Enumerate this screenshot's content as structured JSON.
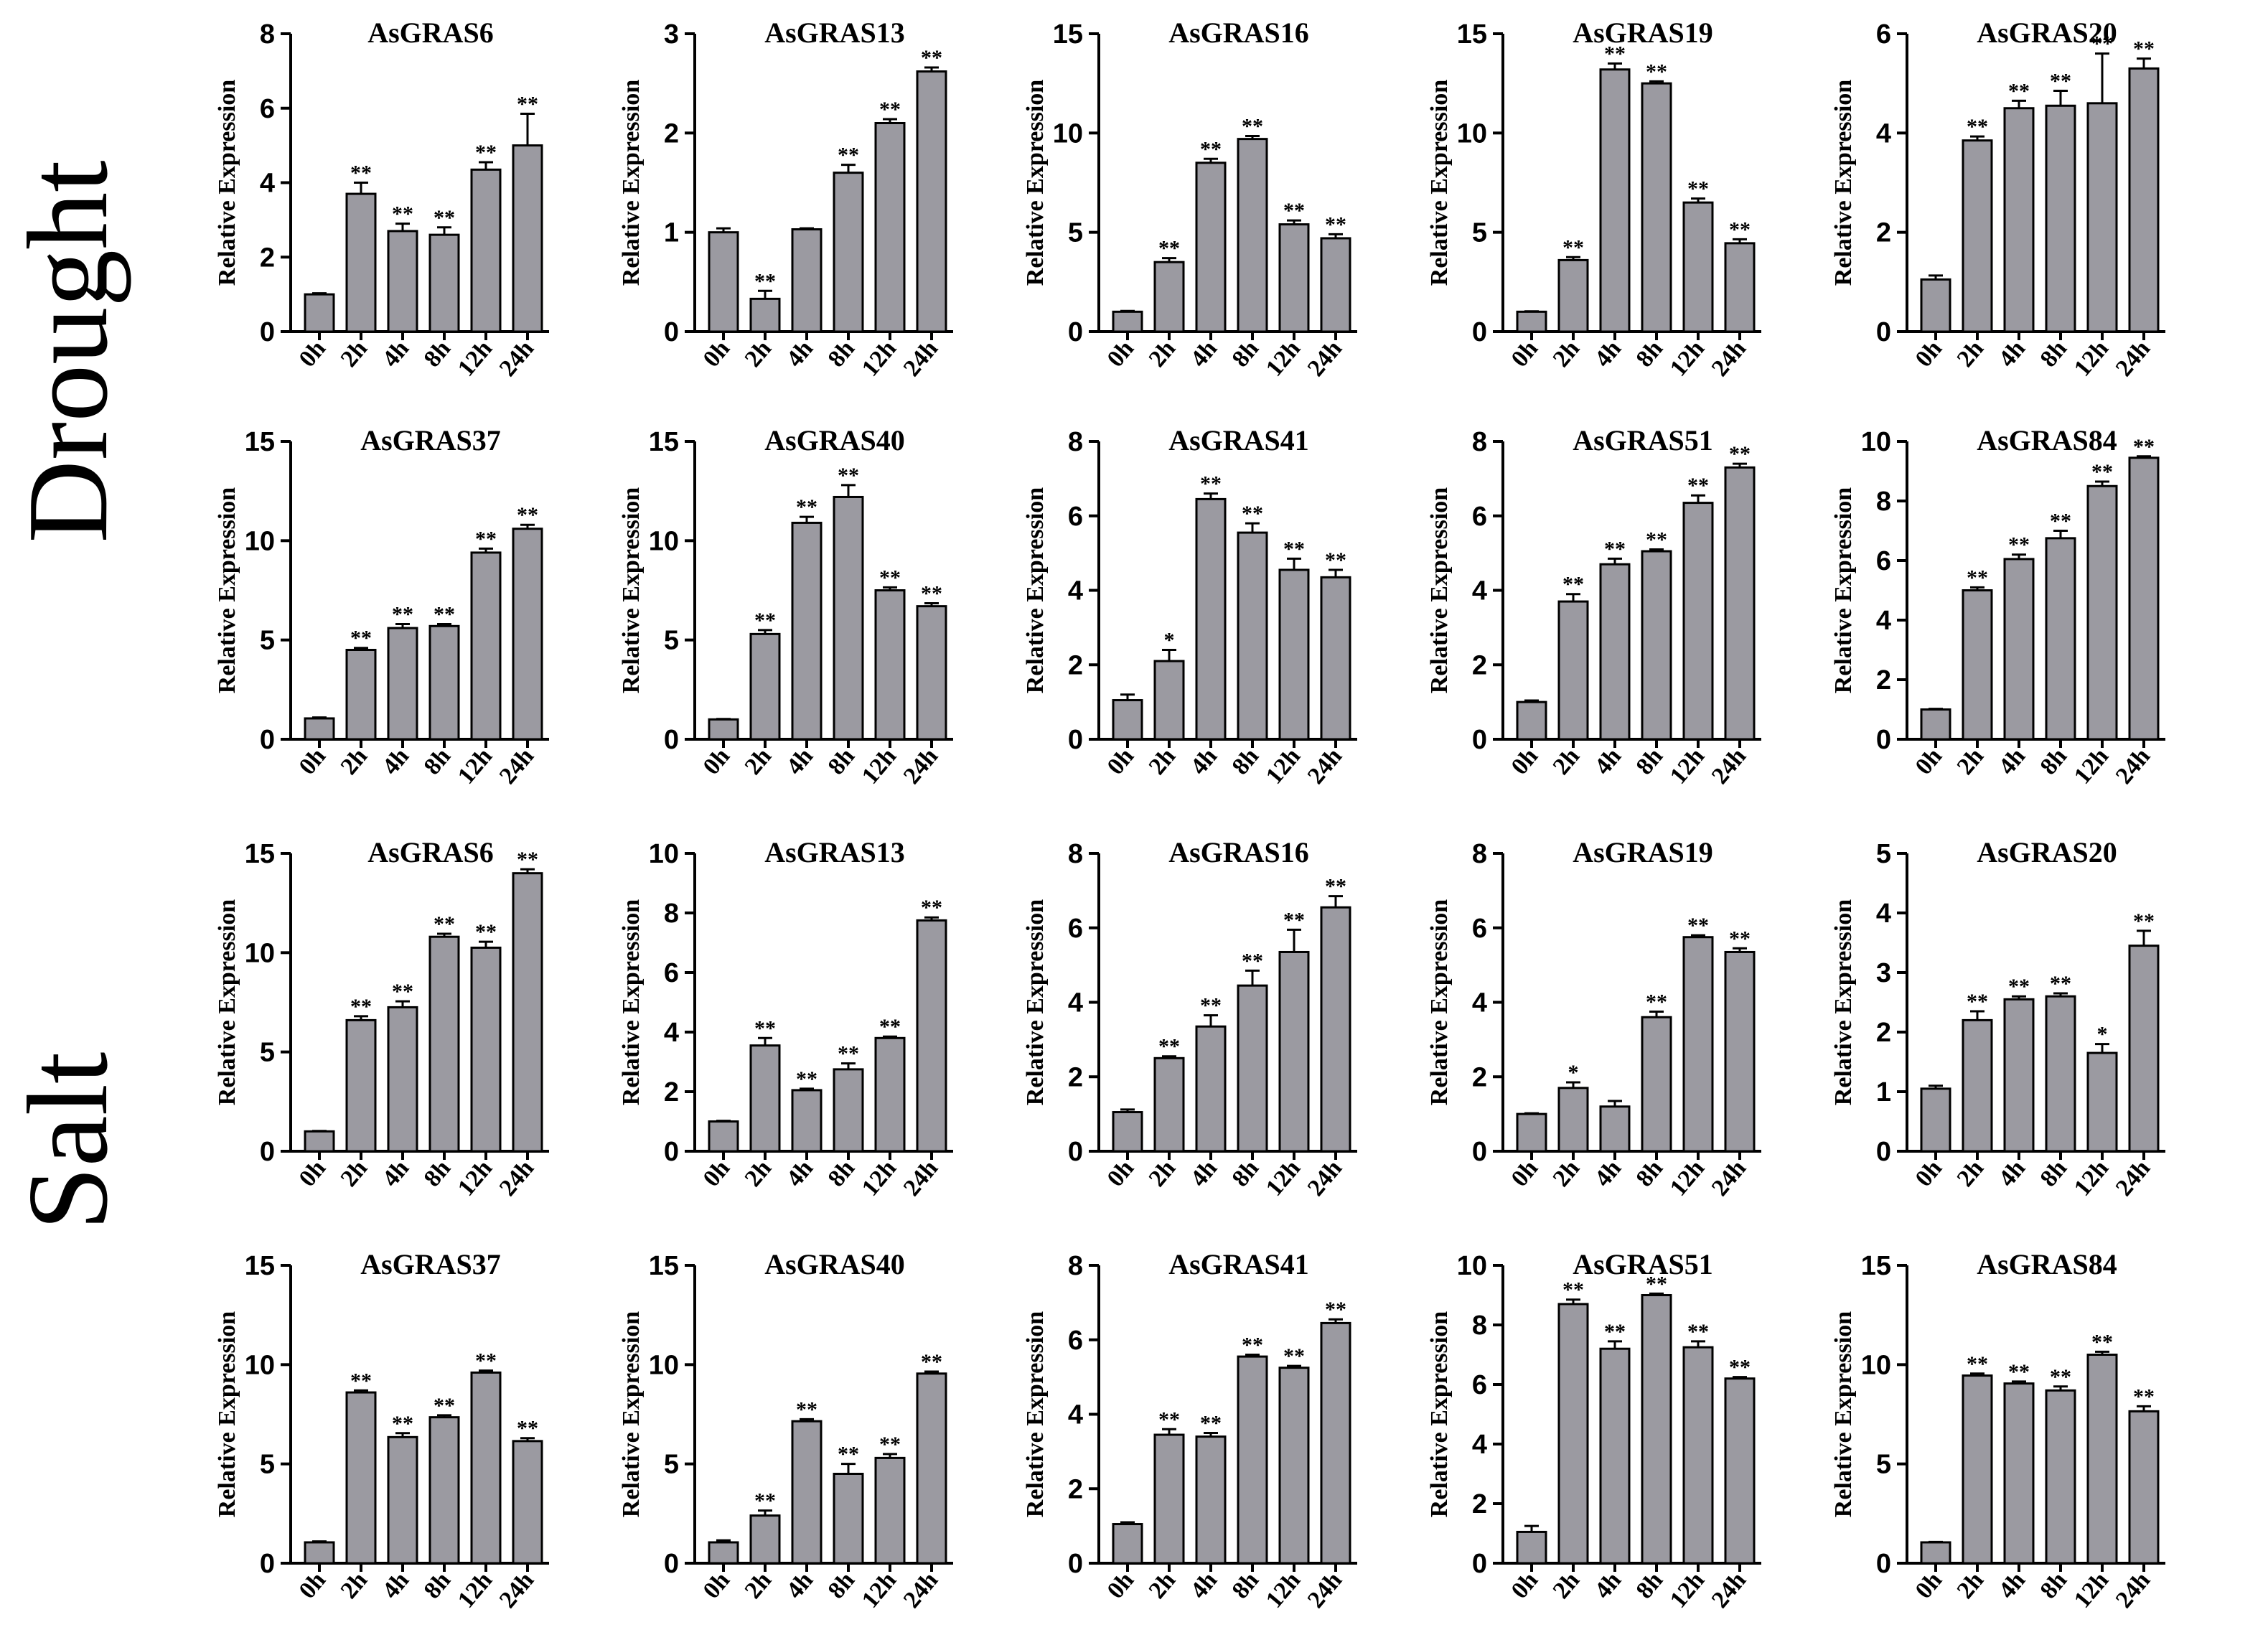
{
  "figure": {
    "row_labels": [
      "Drought",
      "Salt"
    ],
    "ylabel": "Relative Expression",
    "categories": [
      "0h",
      "2h",
      "4h",
      "8h",
      "12h",
      "24h"
    ]
  },
  "colors": {
    "bar": "#9b9aa1",
    "axis": "#000000"
  },
  "chart_data": [
    {
      "type": "bar",
      "condition": "Drought",
      "title": "AsGRAS6",
      "ylabel": "Relative Expression",
      "categories": [
        "0h",
        "2h",
        "4h",
        "8h",
        "12h",
        "24h"
      ],
      "ylim": [
        0,
        8
      ],
      "yticks": [
        "0",
        "2",
        "4",
        "6",
        "8"
      ],
      "values": [
        1.0,
        3.7,
        2.7,
        2.6,
        4.35,
        5.0
      ],
      "errors": [
        0.03,
        0.3,
        0.2,
        0.2,
        0.2,
        0.85
      ],
      "significance": [
        "",
        "**",
        "**",
        "**",
        "**",
        "**"
      ]
    },
    {
      "type": "bar",
      "condition": "Drought",
      "title": "AsGRAS13",
      "ylabel": "Relative Expression",
      "categories": [
        "0h",
        "2h",
        "4h",
        "8h",
        "12h",
        "24h"
      ],
      "ylim": [
        0,
        3
      ],
      "yticks": [
        "0",
        "1",
        "2",
        "3"
      ],
      "values": [
        1.0,
        0.33,
        1.03,
        1.6,
        2.1,
        2.62
      ],
      "errors": [
        0.04,
        0.08,
        0.01,
        0.08,
        0.04,
        0.04
      ],
      "significance": [
        "",
        "**",
        "",
        "**",
        "**",
        "**"
      ]
    },
    {
      "type": "bar",
      "condition": "Drought",
      "title": "AsGRAS16",
      "ylabel": "Relative Expression",
      "categories": [
        "0h",
        "2h",
        "4h",
        "8h",
        "12h",
        "24h"
      ],
      "ylim": [
        0,
        15
      ],
      "yticks": [
        "0",
        "5",
        "10",
        "15"
      ],
      "values": [
        1.0,
        3.5,
        8.5,
        9.7,
        5.4,
        4.7
      ],
      "errors": [
        0.04,
        0.2,
        0.2,
        0.15,
        0.2,
        0.2
      ],
      "significance": [
        "",
        "**",
        "**",
        "**",
        "**",
        "**"
      ]
    },
    {
      "type": "bar",
      "condition": "Drought",
      "title": "AsGRAS19",
      "ylabel": "Relative Expression",
      "categories": [
        "0h",
        "2h",
        "4h",
        "8h",
        "12h",
        "24h"
      ],
      "ylim": [
        0,
        15
      ],
      "yticks": [
        "0",
        "5",
        "10",
        "15"
      ],
      "values": [
        1.0,
        3.6,
        13.2,
        12.5,
        6.5,
        4.45
      ],
      "errors": [
        0.02,
        0.15,
        0.3,
        0.1,
        0.2,
        0.2
      ],
      "significance": [
        "",
        "**",
        "**",
        "**",
        "**",
        "**"
      ]
    },
    {
      "type": "bar",
      "condition": "Drought",
      "title": "AsGRAS20",
      "ylabel": "Relative Expression",
      "categories": [
        "0h",
        "2h",
        "4h",
        "8h",
        "12h",
        "24h"
      ],
      "ylim": [
        0,
        6
      ],
      "yticks": [
        "0",
        "2",
        "4",
        "6"
      ],
      "values": [
        1.05,
        3.85,
        4.5,
        4.55,
        4.6,
        5.3
      ],
      "errors": [
        0.08,
        0.08,
        0.15,
        0.3,
        1.0,
        0.2
      ],
      "significance": [
        "",
        "**",
        "**",
        "**",
        "**",
        "**"
      ]
    },
    {
      "type": "bar",
      "condition": "Drought",
      "title": "AsGRAS37",
      "ylabel": "Relative Expression",
      "categories": [
        "0h",
        "2h",
        "4h",
        "8h",
        "12h",
        "24h"
      ],
      "ylim": [
        0,
        15
      ],
      "yticks": [
        "0",
        "5",
        "10",
        "15"
      ],
      "values": [
        1.05,
        4.5,
        5.6,
        5.7,
        9.4,
        10.6
      ],
      "errors": [
        0.05,
        0.1,
        0.2,
        0.1,
        0.2,
        0.2
      ],
      "significance": [
        "",
        "**",
        "**",
        "**",
        "**",
        "**"
      ]
    },
    {
      "type": "bar",
      "condition": "Drought",
      "title": "AsGRAS40",
      "ylabel": "Relative Expression",
      "categories": [
        "0h",
        "2h",
        "4h",
        "8h",
        "12h",
        "24h"
      ],
      "ylim": [
        0,
        15
      ],
      "yticks": [
        "0",
        "5",
        "10",
        "15"
      ],
      "values": [
        1.0,
        5.3,
        10.9,
        12.2,
        7.5,
        6.7
      ],
      "errors": [
        0.02,
        0.2,
        0.3,
        0.6,
        0.15,
        0.15
      ],
      "significance": [
        "",
        "**",
        "**",
        "**",
        "**",
        "**"
      ]
    },
    {
      "type": "bar",
      "condition": "Drought",
      "title": "AsGRAS41",
      "ylabel": "Relative Expression",
      "categories": [
        "0h",
        "2h",
        "4h",
        "8h",
        "12h",
        "24h"
      ],
      "ylim": [
        0,
        8
      ],
      "yticks": [
        "0",
        "2",
        "4",
        "6",
        "8"
      ],
      "values": [
        1.05,
        2.1,
        6.45,
        5.55,
        4.55,
        4.35
      ],
      "errors": [
        0.15,
        0.3,
        0.15,
        0.25,
        0.3,
        0.2
      ],
      "significance": [
        "",
        "*",
        "**",
        "**",
        "**",
        "**"
      ]
    },
    {
      "type": "bar",
      "condition": "Drought",
      "title": "AsGRAS51",
      "ylabel": "Relative Expression",
      "categories": [
        "0h",
        "2h",
        "4h",
        "8h",
        "12h",
        "24h"
      ],
      "ylim": [
        0,
        8
      ],
      "yticks": [
        "0",
        "2",
        "4",
        "6",
        "8"
      ],
      "values": [
        1.0,
        3.7,
        4.7,
        5.05,
        6.35,
        7.3
      ],
      "errors": [
        0.04,
        0.2,
        0.15,
        0.05,
        0.2,
        0.1
      ],
      "significance": [
        "",
        "**",
        "**",
        "**",
        "**",
        "**"
      ]
    },
    {
      "type": "bar",
      "condition": "Drought",
      "title": "AsGRAS84",
      "ylabel": "Relative Expression",
      "categories": [
        "0h",
        "2h",
        "4h",
        "8h",
        "12h",
        "24h"
      ],
      "ylim": [
        0,
        10
      ],
      "yticks": [
        "0",
        "2",
        "4",
        "6",
        "8",
        "10"
      ],
      "values": [
        1.0,
        5.0,
        6.05,
        6.75,
        8.5,
        9.45
      ],
      "errors": [
        0.02,
        0.1,
        0.15,
        0.25,
        0.15,
        0.05
      ],
      "significance": [
        "",
        "**",
        "**",
        "**",
        "**",
        "**"
      ]
    },
    {
      "type": "bar",
      "condition": "Salt",
      "title": "AsGRAS6",
      "ylabel": "Relative Expression",
      "categories": [
        "0h",
        "2h",
        "4h",
        "8h",
        "12h",
        "24h"
      ],
      "ylim": [
        0,
        15
      ],
      "yticks": [
        "0",
        "5",
        "10",
        "15"
      ],
      "values": [
        1.0,
        6.6,
        7.25,
        10.8,
        10.25,
        14.0
      ],
      "errors": [
        0.02,
        0.2,
        0.3,
        0.15,
        0.3,
        0.2
      ],
      "significance": [
        "",
        "**",
        "**",
        "**",
        "**",
        "**"
      ]
    },
    {
      "type": "bar",
      "condition": "Salt",
      "title": "AsGRAS13",
      "ylabel": "Relative Expression",
      "categories": [
        "0h",
        "2h",
        "4h",
        "8h",
        "12h",
        "24h"
      ],
      "ylim": [
        0,
        10
      ],
      "yticks": [
        "0",
        "2",
        "4",
        "6",
        "8",
        "10"
      ],
      "values": [
        1.0,
        3.55,
        2.05,
        2.75,
        3.8,
        7.75
      ],
      "errors": [
        0.02,
        0.25,
        0.05,
        0.2,
        0.05,
        0.1
      ],
      "significance": [
        "",
        "**",
        "**",
        "**",
        "**",
        "**"
      ]
    },
    {
      "type": "bar",
      "condition": "Salt",
      "title": "AsGRAS16",
      "ylabel": "Relative Expression",
      "categories": [
        "0h",
        "2h",
        "4h",
        "8h",
        "12h",
        "24h"
      ],
      "ylim": [
        0,
        8
      ],
      "yticks": [
        "0",
        "2",
        "4",
        "6",
        "8"
      ],
      "values": [
        1.05,
        2.5,
        3.35,
        4.45,
        5.35,
        6.55
      ],
      "errors": [
        0.07,
        0.05,
        0.3,
        0.4,
        0.6,
        0.3
      ],
      "significance": [
        "",
        "**",
        "**",
        "**",
        "**",
        "**"
      ]
    },
    {
      "type": "bar",
      "condition": "Salt",
      "title": "AsGRAS19",
      "ylabel": "Relative Expression",
      "categories": [
        "0h",
        "2h",
        "4h",
        "8h",
        "12h",
        "24h"
      ],
      "ylim": [
        0,
        8
      ],
      "yticks": [
        "0",
        "2",
        "4",
        "6",
        "8"
      ],
      "values": [
        1.0,
        1.7,
        1.2,
        3.6,
        5.75,
        5.35
      ],
      "errors": [
        0.02,
        0.15,
        0.15,
        0.15,
        0.05,
        0.1
      ],
      "significance": [
        "",
        "*",
        "",
        "**",
        "**",
        "**"
      ]
    },
    {
      "type": "bar",
      "condition": "Salt",
      "title": "AsGRAS20",
      "ylabel": "Relative Expression",
      "categories": [
        "0h",
        "2h",
        "4h",
        "8h",
        "12h",
        "24h"
      ],
      "ylim": [
        0,
        5
      ],
      "yticks": [
        "0",
        "1",
        "2",
        "3",
        "4",
        "5"
      ],
      "values": [
        1.05,
        2.2,
        2.55,
        2.6,
        1.65,
        3.45
      ],
      "errors": [
        0.05,
        0.15,
        0.05,
        0.05,
        0.15,
        0.25
      ],
      "significance": [
        "",
        "**",
        "**",
        "**",
        "*",
        "**"
      ]
    },
    {
      "type": "bar",
      "condition": "Salt",
      "title": "AsGRAS37",
      "ylabel": "Relative Expression",
      "categories": [
        "0h",
        "2h",
        "4h",
        "8h",
        "12h",
        "24h"
      ],
      "ylim": [
        0,
        15
      ],
      "yticks": [
        "0",
        "5",
        "10",
        "15"
      ],
      "values": [
        1.05,
        8.6,
        6.35,
        7.35,
        9.6,
        6.15
      ],
      "errors": [
        0.05,
        0.1,
        0.2,
        0.1,
        0.1,
        0.15
      ],
      "significance": [
        "",
        "**",
        "**",
        "**",
        "**",
        "**"
      ]
    },
    {
      "type": "bar",
      "condition": "Salt",
      "title": "AsGRAS40",
      "ylabel": "Relative Expression",
      "categories": [
        "0h",
        "2h",
        "4h",
        "8h",
        "12h",
        "24h"
      ],
      "ylim": [
        0,
        15
      ],
      "yticks": [
        "0",
        "5",
        "10",
        "15"
      ],
      "values": [
        1.05,
        2.4,
        7.15,
        4.5,
        5.3,
        9.55
      ],
      "errors": [
        0.1,
        0.25,
        0.1,
        0.5,
        0.2,
        0.1
      ],
      "significance": [
        "",
        "**",
        "**",
        "**",
        "**",
        "**"
      ]
    },
    {
      "type": "bar",
      "condition": "Salt",
      "title": "AsGRAS41",
      "ylabel": "Relative Expression",
      "categories": [
        "0h",
        "2h",
        "4h",
        "8h",
        "12h",
        "24h"
      ],
      "ylim": [
        0,
        8
      ],
      "yticks": [
        "0",
        "2",
        "4",
        "6",
        "8"
      ],
      "values": [
        1.05,
        3.45,
        3.4,
        5.55,
        5.25,
        6.45
      ],
      "errors": [
        0.05,
        0.15,
        0.1,
        0.05,
        0.05,
        0.1
      ],
      "significance": [
        "",
        "**",
        "**",
        "**",
        "**",
        "**"
      ]
    },
    {
      "type": "bar",
      "condition": "Salt",
      "title": "AsGRAS51",
      "ylabel": "Relative Expression",
      "categories": [
        "0h",
        "2h",
        "4h",
        "8h",
        "12h",
        "24h"
      ],
      "ylim": [
        0,
        10
      ],
      "yticks": [
        "0",
        "2",
        "4",
        "6",
        "8",
        "10"
      ],
      "values": [
        1.05,
        8.7,
        7.2,
        9.0,
        7.25,
        6.2
      ],
      "errors": [
        0.2,
        0.15,
        0.25,
        0.05,
        0.2,
        0.05
      ],
      "significance": [
        "",
        "**",
        "**",
        "**",
        "**",
        "**"
      ]
    },
    {
      "type": "bar",
      "condition": "Salt",
      "title": "AsGRAS84",
      "ylabel": "Relative Expression",
      "categories": [
        "0h",
        "2h",
        "4h",
        "8h",
        "12h",
        "24h"
      ],
      "ylim": [
        0,
        15
      ],
      "yticks": [
        "0",
        "5",
        "10",
        "15"
      ],
      "values": [
        1.05,
        9.45,
        9.05,
        8.7,
        10.5,
        7.65
      ],
      "errors": [
        0.02,
        0.1,
        0.1,
        0.2,
        0.15,
        0.25
      ],
      "significance": [
        "",
        "**",
        "**",
        "**",
        "**",
        "**"
      ]
    }
  ]
}
